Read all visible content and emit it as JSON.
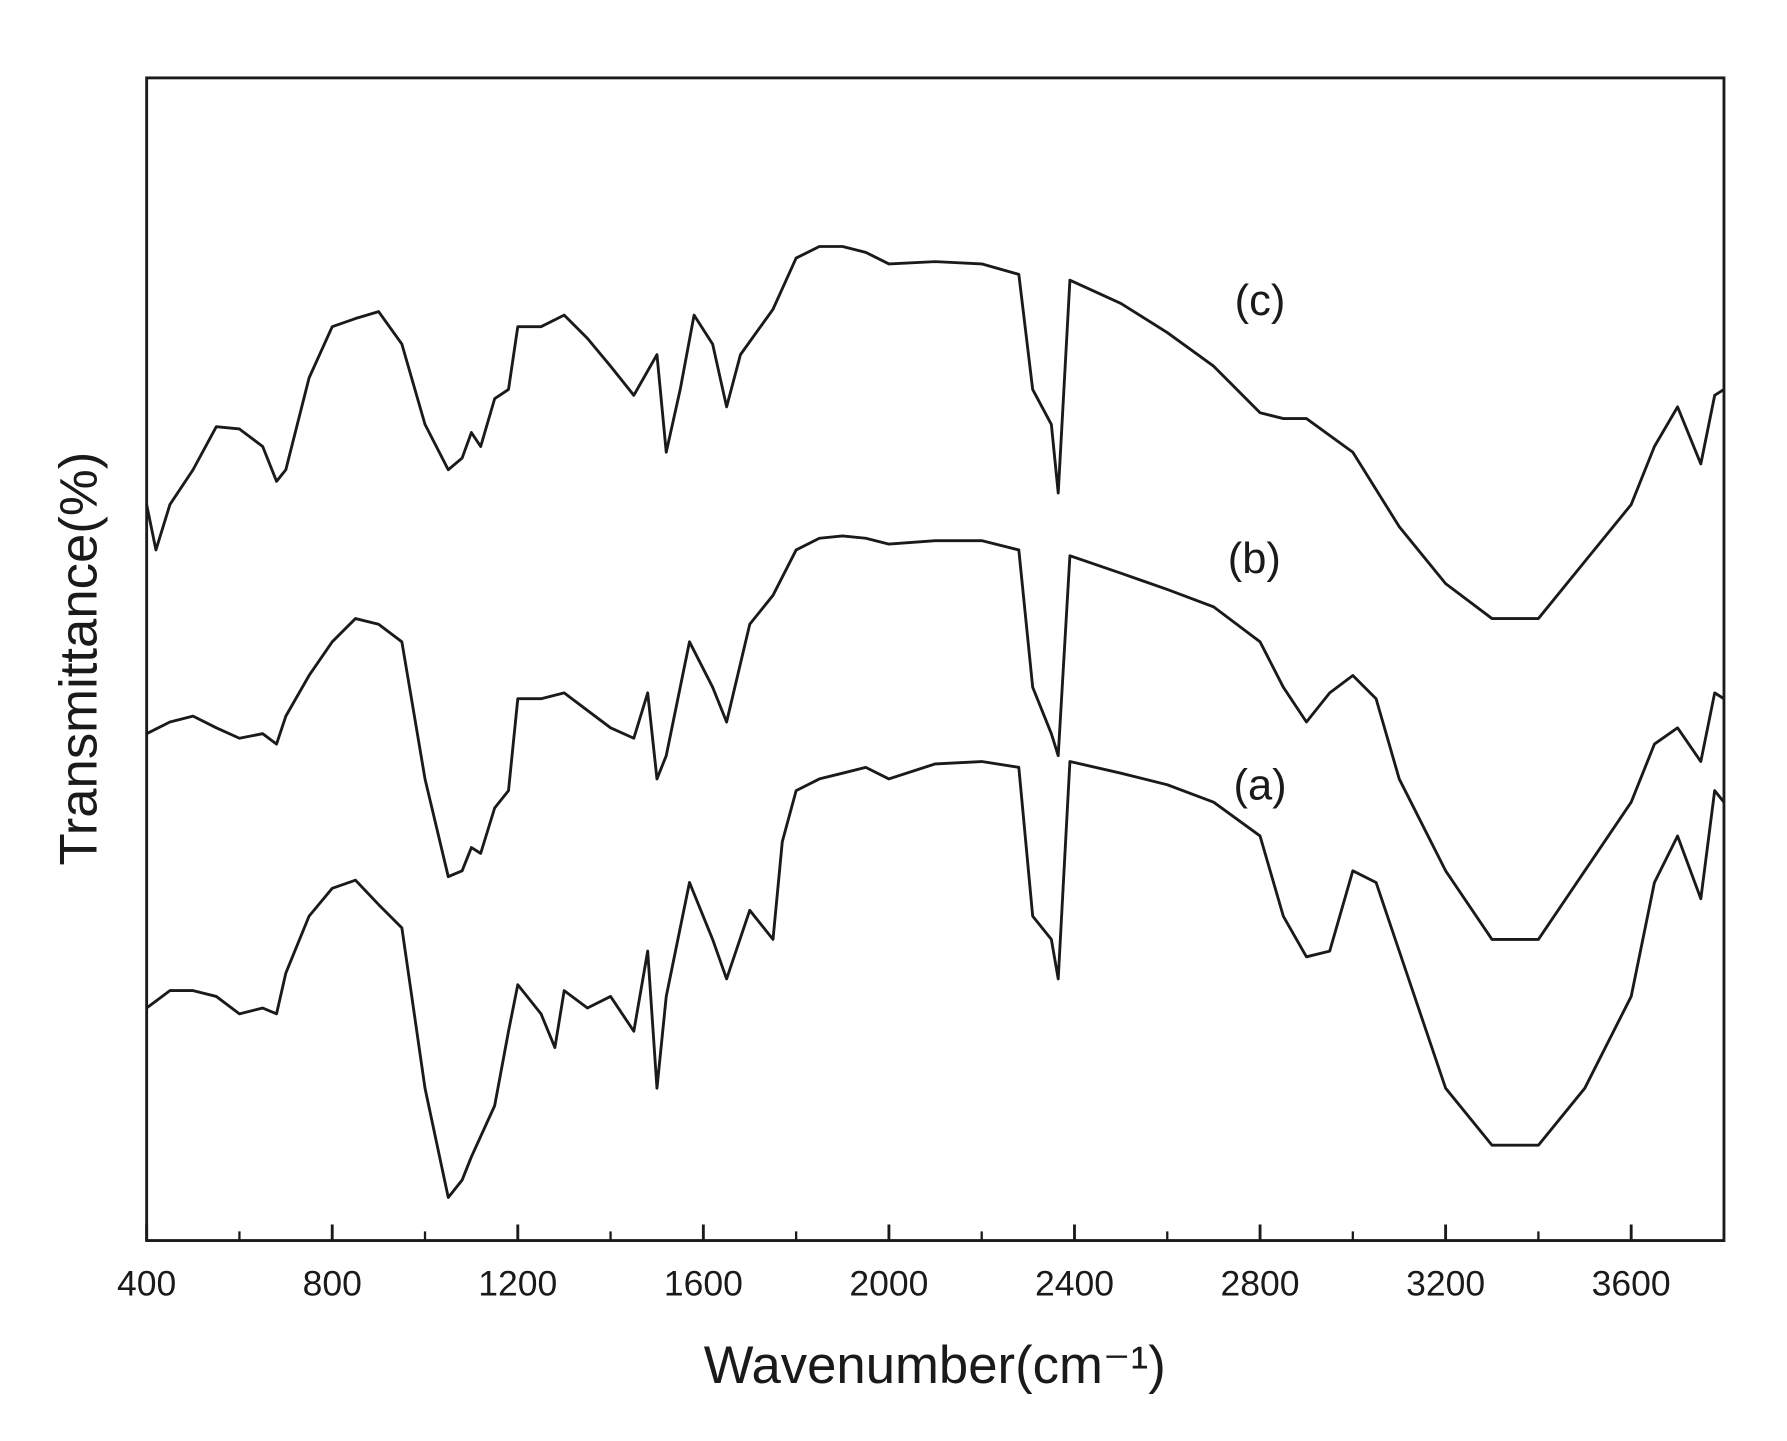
{
  "chart_data": {
    "type": "line",
    "xlabel": "Wavenumber(cm⁻¹)",
    "ylabel": "Transmittance(%)",
    "xlim": [
      400,
      3800
    ],
    "ylim": [
      0,
      100
    ],
    "xticks": [
      400,
      800,
      1200,
      1600,
      2000,
      2400,
      2800,
      3200,
      3600
    ],
    "xticks_minor": [
      600,
      1000,
      1400,
      1800,
      2200,
      2600,
      3000,
      3400
    ],
    "series": [
      {
        "name": "(c)",
        "color": "#1a1a1a",
        "x": [
          400,
          420,
          450,
          500,
          550,
          600,
          650,
          680,
          700,
          750,
          800,
          850,
          900,
          950,
          1000,
          1050,
          1080,
          1100,
          1120,
          1150,
          1180,
          1200,
          1250,
          1300,
          1350,
          1400,
          1450,
          1500,
          1520,
          1550,
          1580,
          1620,
          1650,
          1680,
          1750,
          1800,
          1850,
          1900,
          1950,
          2000,
          2100,
          2200,
          2280,
          2310,
          2350,
          2365,
          2390,
          2500,
          2600,
          2700,
          2800,
          2850,
          2900,
          3000,
          3100,
          3200,
          3300,
          3400,
          3500,
          3600,
          3650,
          3700,
          3750,
          3780,
          3800
        ],
        "values": [
          63.3,
          59.4,
          63.3,
          66.3,
          70.0,
          69.8,
          68.3,
          65.3,
          66.3,
          74.2,
          78.6,
          79.3,
          79.9,
          77.1,
          70.2,
          66.3,
          67.3,
          69.5,
          68.3,
          72.4,
          73.2,
          78.6,
          78.6,
          79.6,
          77.6,
          75.2,
          72.7,
          76.2,
          67.8,
          73.2,
          79.6,
          77.1,
          71.7,
          76.2,
          80.1,
          84.5,
          85.5,
          85.5,
          85.0,
          84.0,
          84.2,
          84.0,
          83.1,
          73.2,
          70.2,
          64.3,
          82.6,
          80.6,
          78.1,
          75.2,
          71.2,
          70.7,
          70.7,
          67.8,
          61.4,
          56.5,
          53.5,
          53.5,
          58.4,
          63.3,
          68.3,
          71.7,
          66.8,
          72.7,
          73.2
        ]
      },
      {
        "name": "(b)",
        "color": "#1a1a1a",
        "x": [
          400,
          450,
          500,
          550,
          600,
          650,
          680,
          700,
          750,
          800,
          850,
          900,
          950,
          1000,
          1050,
          1080,
          1100,
          1120,
          1150,
          1180,
          1200,
          1250,
          1300,
          1350,
          1400,
          1450,
          1480,
          1500,
          1520,
          1570,
          1620,
          1650,
          1700,
          1750,
          1800,
          1850,
          1900,
          1950,
          2000,
          2100,
          2200,
          2280,
          2310,
          2350,
          2365,
          2390,
          2500,
          2600,
          2700,
          2800,
          2850,
          2900,
          2950,
          3000,
          3050,
          3100,
          3200,
          3300,
          3400,
          3500,
          3600,
          3650,
          3700,
          3750,
          3780,
          3800
        ],
        "values": [
          43.6,
          44.6,
          45.1,
          44.1,
          43.2,
          43.6,
          42.7,
          45.1,
          48.6,
          51.5,
          53.5,
          53.0,
          51.5,
          39.7,
          31.3,
          31.8,
          33.8,
          33.3,
          37.2,
          38.7,
          46.6,
          46.6,
          47.1,
          45.6,
          44.1,
          43.2,
          47.1,
          39.7,
          41.7,
          51.5,
          47.6,
          44.6,
          53.0,
          55.5,
          59.4,
          60.4,
          60.6,
          60.4,
          59.9,
          60.2,
          60.2,
          59.4,
          47.6,
          43.6,
          41.7,
          58.9,
          57.4,
          56.0,
          54.5,
          51.5,
          47.6,
          44.6,
          47.1,
          48.6,
          46.6,
          39.7,
          31.8,
          25.9,
          25.9,
          31.8,
          37.7,
          42.7,
          44.1,
          41.2,
          47.1,
          46.6
        ]
      },
      {
        "name": "(a)",
        "color": "#1a1a1a",
        "x": [
          400,
          450,
          500,
          550,
          600,
          650,
          680,
          700,
          750,
          800,
          850,
          900,
          950,
          1000,
          1050,
          1080,
          1100,
          1150,
          1180,
          1200,
          1250,
          1280,
          1300,
          1350,
          1400,
          1450,
          1480,
          1500,
          1520,
          1570,
          1620,
          1650,
          1700,
          1750,
          1770,
          1800,
          1850,
          1900,
          1950,
          2000,
          2100,
          2200,
          2280,
          2310,
          2350,
          2365,
          2390,
          2500,
          2600,
          2700,
          2800,
          2850,
          2900,
          2950,
          3000,
          3050,
          3100,
          3200,
          3300,
          3400,
          3500,
          3600,
          3650,
          3700,
          3750,
          3780,
          3800
        ],
        "values": [
          20.0,
          21.5,
          21.5,
          21.0,
          19.5,
          20.0,
          19.5,
          23.0,
          27.9,
          30.3,
          31.0,
          28.9,
          26.9,
          13.1,
          3.7,
          5.2,
          7.2,
          11.6,
          18.0,
          22.0,
          19.5,
          16.6,
          21.5,
          20.0,
          21.0,
          18.0,
          24.9,
          13.1,
          21.0,
          30.8,
          25.9,
          22.5,
          28.4,
          25.9,
          34.3,
          38.7,
          39.7,
          40.2,
          40.7,
          39.7,
          41.0,
          41.2,
          40.7,
          27.9,
          25.9,
          22.5,
          41.2,
          40.2,
          39.2,
          37.7,
          34.8,
          27.9,
          24.4,
          24.9,
          31.8,
          30.8,
          24.9,
          13.1,
          8.2,
          8.2,
          13.1,
          21.0,
          30.8,
          34.8,
          29.4,
          38.7,
          37.7
        ]
      }
    ]
  }
}
